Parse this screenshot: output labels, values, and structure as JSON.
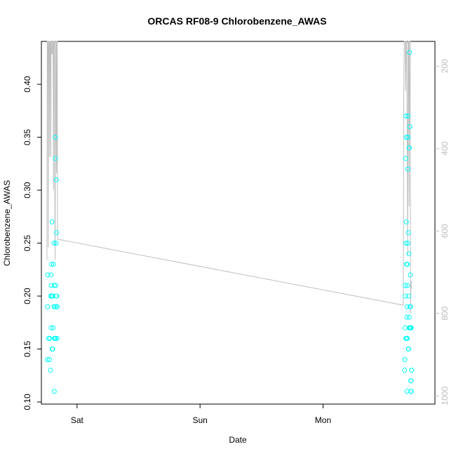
{
  "chart_data": {
    "type": "scatter",
    "title": "ORCAS RF08-9 Chlorobenzene_AWAS",
    "xlabel": "Date",
    "ylabel": "Chlorobenzene_AWAS",
    "x_ticks": [
      {
        "label": "Sat",
        "day": 1.0
      },
      {
        "label": "Sun",
        "day": 2.0
      },
      {
        "label": "Mon",
        "day": 3.0
      }
    ],
    "xlim_days": [
      0.71,
      3.91
    ],
    "ylim": [
      0.098,
      0.4405
    ],
    "y_ticks": [
      0.1,
      0.15,
      0.2,
      0.25,
      0.3,
      0.35,
      0.4
    ],
    "y2_ticks": [
      200,
      400,
      600,
      800,
      1000
    ],
    "y2lim": [
      1020,
      140
    ],
    "colors": {
      "points": "#00ffff",
      "pressure_line": "#bebebe",
      "axis": "#000000",
      "secondary_axis": "#bdbdbd"
    },
    "points_x_unit": "days after Fri 00:00",
    "points": [
      [
        0.759,
        0.14
      ],
      [
        0.76,
        0.19
      ],
      [
        0.761,
        0.22
      ],
      [
        0.769,
        0.16
      ],
      [
        0.775,
        0.14
      ],
      [
        0.779,
        0.16
      ],
      [
        0.784,
        0.13
      ],
      [
        0.787,
        0.2
      ],
      [
        0.789,
        0.22
      ],
      [
        0.79,
        0.17
      ],
      [
        0.791,
        0.21
      ],
      [
        0.793,
        0.23
      ],
      [
        0.794,
        0.2
      ],
      [
        0.796,
        0.27
      ],
      [
        0.798,
        0.15
      ],
      [
        0.801,
        0.2
      ],
      [
        0.802,
        0.15
      ],
      [
        0.806,
        0.17
      ],
      [
        0.81,
        0.23
      ],
      [
        0.812,
        0.19
      ],
      [
        0.813,
        0.25
      ],
      [
        0.815,
        0.11
      ],
      [
        0.815,
        0.21
      ],
      [
        0.817,
        0.16
      ],
      [
        0.82,
        0.16
      ],
      [
        0.822,
        0.19
      ],
      [
        0.823,
        0.35
      ],
      [
        0.824,
        0.33
      ],
      [
        0.825,
        0.16
      ],
      [
        0.827,
        0.21
      ],
      [
        0.829,
        0.2
      ],
      [
        0.83,
        0.25
      ],
      [
        0.831,
        0.31
      ],
      [
        0.833,
        0.26
      ],
      [
        0.834,
        0.2
      ],
      [
        0.835,
        0.19
      ],
      [
        0.837,
        0.16
      ],
      [
        0.838,
        0.19
      ],
      [
        3.663,
        0.13
      ],
      [
        3.665,
        0.14
      ],
      [
        3.667,
        0.17
      ],
      [
        3.669,
        0.21
      ],
      [
        3.67,
        0.2
      ],
      [
        3.672,
        0.33
      ],
      [
        3.673,
        0.16
      ],
      [
        3.674,
        0.37
      ],
      [
        3.675,
        0.25
      ],
      [
        3.677,
        0.27
      ],
      [
        3.678,
        0.35
      ],
      [
        3.679,
        0.23
      ],
      [
        3.681,
        0.16
      ],
      [
        3.682,
        0.18
      ],
      [
        3.683,
        0.11
      ],
      [
        3.684,
        0.19
      ],
      [
        3.685,
        0.16
      ],
      [
        3.686,
        0.23
      ],
      [
        3.687,
        0.21
      ],
      [
        3.689,
        0.32
      ],
      [
        3.69,
        0.25
      ],
      [
        3.691,
        0.35
      ],
      [
        3.692,
        0.37
      ],
      [
        3.693,
        0.26
      ],
      [
        3.694,
        0.15
      ],
      [
        3.696,
        0.15
      ],
      [
        3.697,
        0.2
      ],
      [
        3.698,
        0.24
      ],
      [
        3.699,
        0.34
      ],
      [
        3.7,
        0.17
      ],
      [
        3.701,
        0.18
      ],
      [
        3.702,
        0.34
      ],
      [
        3.703,
        0.43
      ],
      [
        3.705,
        0.17
      ],
      [
        3.706,
        0.36
      ],
      [
        3.707,
        0.19
      ],
      [
        3.709,
        0.17
      ],
      [
        3.71,
        0.22
      ],
      [
        3.711,
        0.19
      ],
      [
        3.712,
        0.17
      ],
      [
        3.714,
        0.12
      ],
      [
        3.715,
        0.11
      ],
      [
        3.716,
        0.12
      ],
      [
        3.717,
        0.17
      ],
      [
        3.718,
        0.11
      ],
      [
        3.72,
        0.13
      ],
      [
        3.721,
        0.13
      ]
    ],
    "pressure_line": [
      [
        0.755,
        670
      ],
      [
        0.758,
        120
      ],
      [
        0.763,
        120
      ],
      [
        0.766,
        640
      ],
      [
        0.769,
        120
      ],
      [
        0.774,
        120
      ],
      [
        0.777,
        420
      ],
      [
        0.779,
        120
      ],
      [
        0.784,
        120
      ],
      [
        0.787,
        420
      ],
      [
        0.789,
        120
      ],
      [
        0.792,
        120
      ],
      [
        0.794,
        170
      ],
      [
        0.797,
        170
      ],
      [
        0.801,
        120
      ],
      [
        0.805,
        120
      ],
      [
        0.808,
        500
      ],
      [
        0.811,
        120
      ],
      [
        0.816,
        120
      ],
      [
        0.819,
        510
      ],
      [
        0.822,
        670
      ],
      [
        0.825,
        120
      ],
      [
        0.829,
        120
      ],
      [
        0.831,
        380
      ],
      [
        0.834,
        460
      ],
      [
        0.836,
        120
      ],
      [
        0.839,
        120
      ],
      [
        0.841,
        620
      ],
      [
        3.652,
        780
      ],
      [
        3.656,
        300
      ],
      [
        3.66,
        120
      ],
      [
        3.668,
        120
      ],
      [
        3.672,
        260
      ],
      [
        3.676,
        120
      ],
      [
        3.68,
        120
      ],
      [
        3.684,
        360
      ],
      [
        3.688,
        660
      ],
      [
        3.692,
        120
      ],
      [
        3.696,
        120
      ],
      [
        3.7,
        540
      ],
      [
        3.704,
        120
      ],
      [
        3.708,
        120
      ],
      [
        3.712,
        800
      ],
      [
        3.716,
        720
      ],
      [
        3.719,
        740
      ]
    ]
  }
}
